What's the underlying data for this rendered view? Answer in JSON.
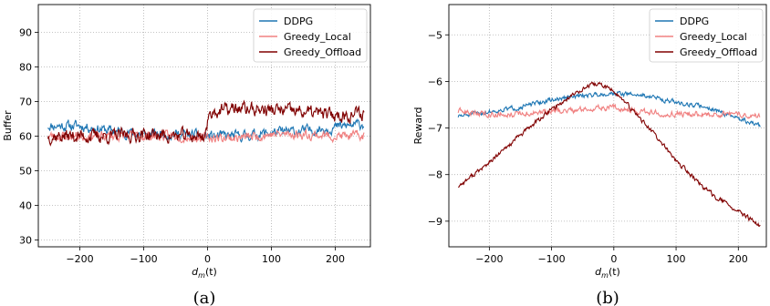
{
  "colors": {
    "DDPG": "#1f77b4",
    "Greedy_Local": "#f08080",
    "Greedy_Offload": "#800000"
  },
  "chart_data": [
    {
      "type": "line",
      "caption": "(a)",
      "xlabel": "d_m(t)",
      "xlabel_main": "d",
      "xlabel_sub": "m",
      "xlabel_tail": "(t)",
      "ylabel": "Buffer",
      "xlim": [
        -265,
        255
      ],
      "ylim": [
        28,
        98
      ],
      "xticks": [
        -200,
        -100,
        0,
        100,
        200
      ],
      "yticks": [
        30,
        40,
        50,
        60,
        70,
        80,
        90
      ],
      "xtick_labels": [
        "−200",
        "−100",
        "0",
        "100",
        "200"
      ],
      "ytick_labels": [
        "30",
        "40",
        "50",
        "60",
        "70",
        "80",
        "90"
      ],
      "grid": true,
      "legend": "top-right",
      "x_range": [
        -250,
        245
      ],
      "series": [
        {
          "name": "DDPG",
          "noise": 1.2,
          "seed": 11,
          "anchors": [
            [
              -250,
              63
            ],
            [
              -200,
              63
            ],
            [
              -150,
              61.5
            ],
            [
              -100,
              60.5
            ],
            [
              -50,
              60.5
            ],
            [
              0,
              60
            ],
            [
              50,
              60
            ],
            [
              100,
              61
            ],
            [
              150,
              61.5
            ],
            [
              200,
              62.5
            ],
            [
              245,
              63.5
            ]
          ]
        },
        {
          "name": "Greedy_Local",
          "noise": 1.1,
          "seed": 23,
          "anchors": [
            [
              -250,
              60
            ],
            [
              -200,
              60
            ],
            [
              -150,
              60
            ],
            [
              -100,
              60
            ],
            [
              -50,
              60
            ],
            [
              0,
              59.5
            ],
            [
              50,
              59.5
            ],
            [
              100,
              60.5
            ],
            [
              150,
              60.5
            ],
            [
              200,
              60
            ],
            [
              245,
              60
            ]
          ]
        },
        {
          "name": "Greedy_Offload",
          "noise": 1.6,
          "seed": 37,
          "anchors": [
            [
              -250,
              60
            ],
            [
              -200,
              60
            ],
            [
              -150,
              60
            ],
            [
              -100,
              60.5
            ],
            [
              -50,
              60
            ],
            [
              -5,
              60
            ],
            [
              5,
              67
            ],
            [
              50,
              68
            ],
            [
              100,
              67.5
            ],
            [
              150,
              67
            ],
            [
              200,
              66
            ],
            [
              245,
              66.5
            ]
          ]
        }
      ]
    },
    {
      "type": "line",
      "caption": "(b)",
      "xlabel": "d_m(t)",
      "xlabel_main": "d",
      "xlabel_sub": "m",
      "xlabel_tail": "(t)",
      "ylabel": "Reward",
      "xlim": [
        -265,
        245
      ],
      "ylim": [
        -9.55,
        -4.35
      ],
      "xticks": [
        -200,
        -100,
        0,
        100,
        200
      ],
      "yticks": [
        -9,
        -8,
        -7,
        -6,
        -5
      ],
      "xtick_labels": [
        "−200",
        "−100",
        "0",
        "100",
        "200"
      ],
      "ytick_labels": [
        "−9",
        "−8",
        "−7",
        "−6",
        "−5"
      ],
      "grid": true,
      "legend": "top-right",
      "x_range": [
        -250,
        235
      ],
      "series": [
        {
          "name": "DDPG",
          "noise": 0.04,
          "seed": 51,
          "anchors": [
            [
              -250,
              -6.75
            ],
            [
              -200,
              -6.65
            ],
            [
              -150,
              -6.55
            ],
            [
              -100,
              -6.4
            ],
            [
              -50,
              -6.3
            ],
            [
              0,
              -6.25
            ],
            [
              50,
              -6.3
            ],
            [
              100,
              -6.45
            ],
            [
              150,
              -6.55
            ],
            [
              200,
              -6.8
            ],
            [
              235,
              -6.95
            ]
          ]
        },
        {
          "name": "Greedy_Local",
          "noise": 0.05,
          "seed": 63,
          "anchors": [
            [
              -250,
              -6.65
            ],
            [
              -200,
              -6.7
            ],
            [
              -150,
              -6.7
            ],
            [
              -100,
              -6.65
            ],
            [
              -50,
              -6.6
            ],
            [
              0,
              -6.55
            ],
            [
              50,
              -6.65
            ],
            [
              100,
              -6.7
            ],
            [
              150,
              -6.7
            ],
            [
              200,
              -6.7
            ],
            [
              235,
              -6.75
            ]
          ]
        },
        {
          "name": "Greedy_Offload",
          "noise": 0.04,
          "seed": 77,
          "anchors": [
            [
              -250,
              -8.25
            ],
            [
              -200,
              -7.75
            ],
            [
              -150,
              -7.15
            ],
            [
              -100,
              -6.6
            ],
            [
              -50,
              -6.15
            ],
            [
              -25,
              -6.05
            ],
            [
              0,
              -6.2
            ],
            [
              50,
              -6.9
            ],
            [
              100,
              -7.7
            ],
            [
              150,
              -8.35
            ],
            [
              200,
              -8.8
            ],
            [
              235,
              -9.1
            ]
          ]
        }
      ]
    }
  ]
}
